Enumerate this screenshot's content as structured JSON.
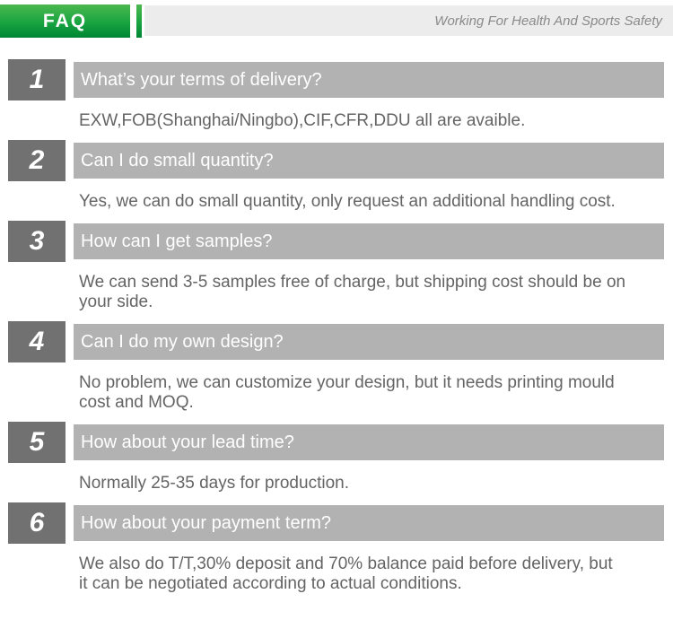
{
  "header": {
    "title": "FAQ",
    "tagline": "Working For Health And Sports Safety"
  },
  "colors": {
    "green_top": "#4cb84e",
    "green_bottom": "#008534",
    "number_block": "#717171",
    "question_bar": "#b2b2b2",
    "answer_text": "#646464",
    "tagline_bar": "#ececec",
    "tagline_text": "#8a8a8a"
  },
  "faq": {
    "items": [
      {
        "number": "1",
        "question": "What’s your terms of delivery?",
        "answer": "EXW,FOB(Shanghai/Ningbo),CIF,CFR,DDU all are avaible."
      },
      {
        "number": "2",
        "question": "Can I do small quantity?",
        "answer": "Yes, we can do small quantity, only request an additional handling cost."
      },
      {
        "number": "3",
        "question": "How can I get samples?",
        "answer": "We can send 3-5 samples free of charge, but shipping cost should be on\nyour side."
      },
      {
        "number": "4",
        "question": "Can I do my own design?",
        "answer": "No problem, we can customize your design, but it needs printing mould\ncost and MOQ."
      },
      {
        "number": "5",
        "question": "How about your lead time?",
        "answer": "Normally 25-35 days for production."
      },
      {
        "number": "6",
        "question": "How about your payment term?",
        "answer": "We also do T/T,30% deposit and 70% balance paid before delivery, but\nit can be negotiated according to actual conditions."
      }
    ]
  }
}
